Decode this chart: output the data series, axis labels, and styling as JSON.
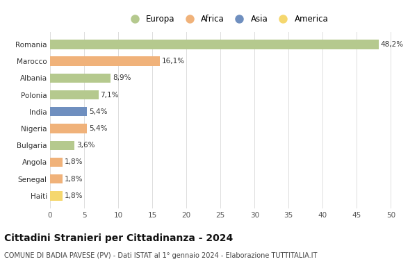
{
  "countries": [
    "Romania",
    "Marocco",
    "Albania",
    "Polonia",
    "India",
    "Nigeria",
    "Bulgaria",
    "Angola",
    "Senegal",
    "Haiti"
  ],
  "values": [
    48.2,
    16.1,
    8.9,
    7.1,
    5.4,
    5.4,
    3.6,
    1.8,
    1.8,
    1.8
  ],
  "labels": [
    "48,2%",
    "16,1%",
    "8,9%",
    "7,1%",
    "5,4%",
    "5,4%",
    "3,6%",
    "1,8%",
    "1,8%",
    "1,8%"
  ],
  "colors": [
    "#b5c98e",
    "#f0b27a",
    "#b5c98e",
    "#b5c98e",
    "#6f8fbf",
    "#f0b27a",
    "#b5c98e",
    "#f0b27a",
    "#f0b27a",
    "#f5d76e"
  ],
  "legend": [
    {
      "label": "Europa",
      "color": "#b5c98e"
    },
    {
      "label": "Africa",
      "color": "#f0b27a"
    },
    {
      "label": "Asia",
      "color": "#6f8fbf"
    },
    {
      "label": "America",
      "color": "#f5d76e"
    }
  ],
  "xlim": [
    0,
    52
  ],
  "xticks": [
    0,
    5,
    10,
    15,
    20,
    25,
    30,
    35,
    40,
    45,
    50
  ],
  "title": "Cittadini Stranieri per Cittadinanza - 2024",
  "subtitle": "COMUNE DI BADIA PAVESE (PV) - Dati ISTAT al 1° gennaio 2024 - Elaborazione TUTTITALIA.IT",
  "bg_color": "#ffffff",
  "grid_color": "#dddddd",
  "bar_height": 0.55,
  "label_fontsize": 7.5,
  "ytick_fontsize": 7.5,
  "xtick_fontsize": 7.5,
  "title_fontsize": 10,
  "subtitle_fontsize": 7
}
